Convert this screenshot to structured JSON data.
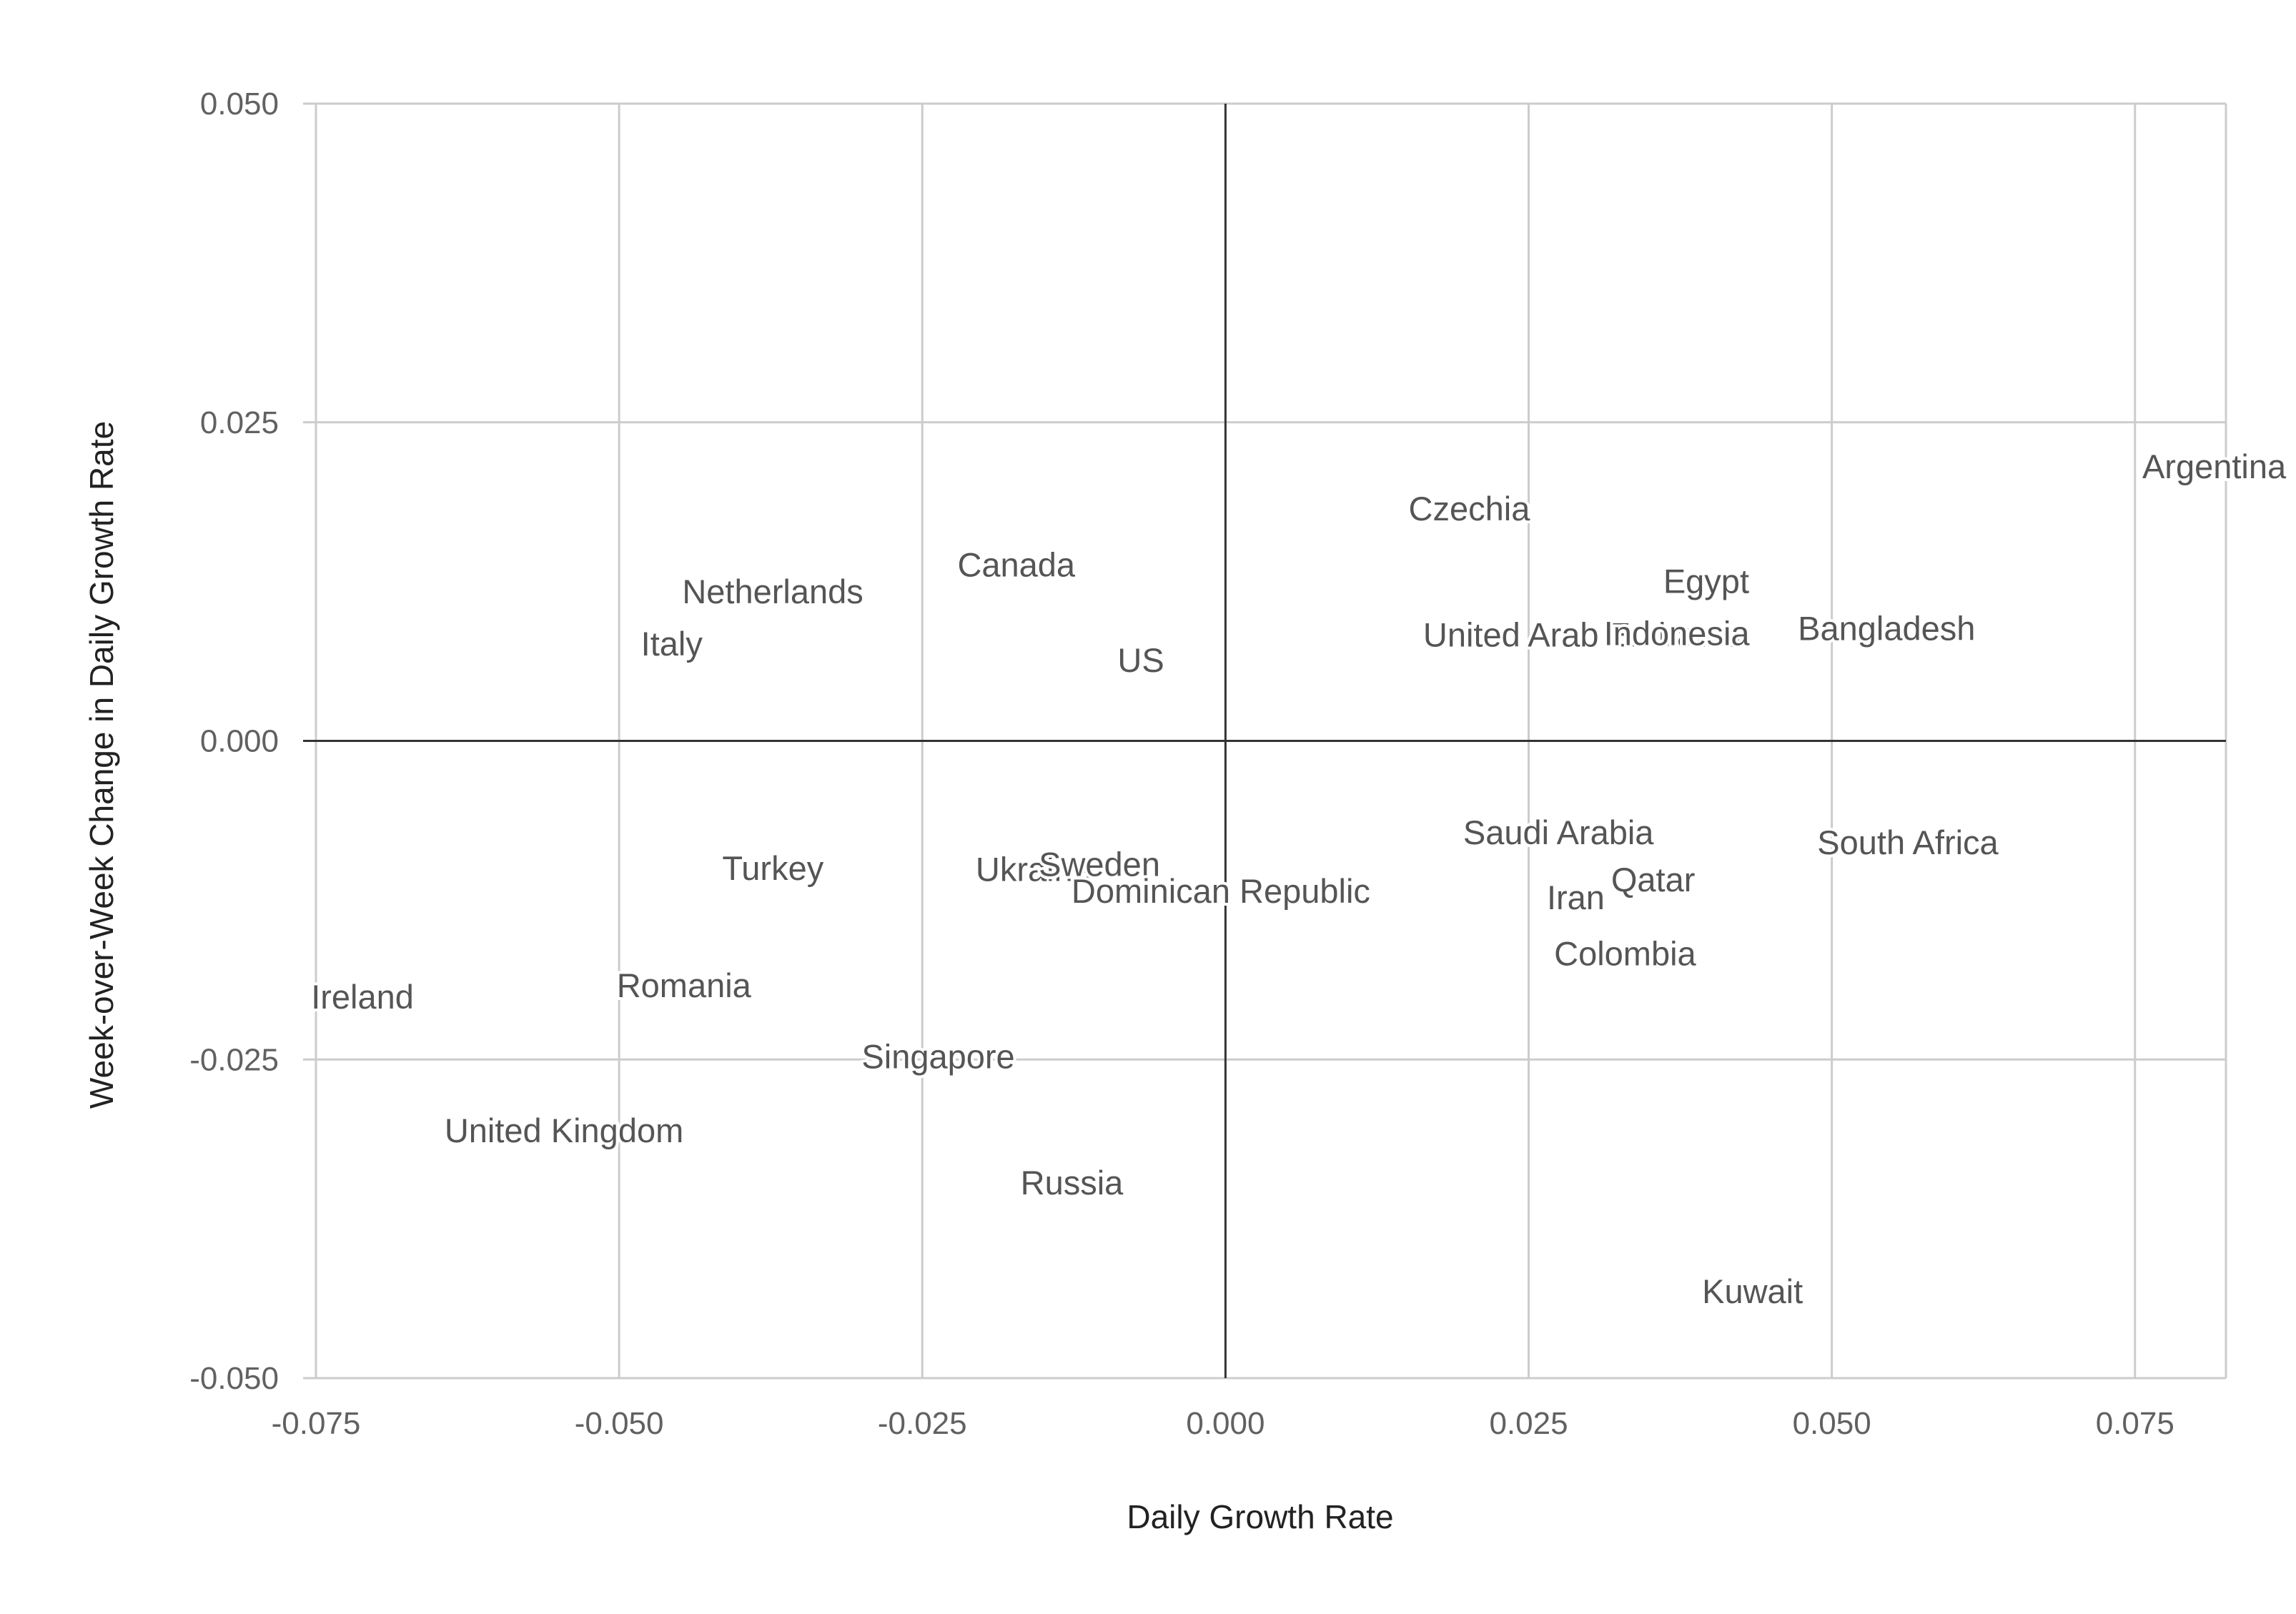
{
  "chart_data": {
    "type": "scatter",
    "xlabel": "Daily Growth Rate",
    "ylabel": "Week-over-Week Change in Daily Growth Rate",
    "xlim": [
      -0.075,
      0.0825
    ],
    "ylim": [
      -0.05,
      0.05
    ],
    "xticks": [
      -0.075,
      -0.05,
      -0.025,
      0.0,
      0.025,
      0.05,
      0.075
    ],
    "yticks": [
      -0.05,
      -0.025,
      0.0,
      0.025,
      0.05
    ],
    "xtick_labels": [
      "-0.075",
      "-0.050",
      "-0.025",
      "0.000",
      "0.025",
      "0.050",
      "0.075"
    ],
    "ytick_labels": [
      "-0.050",
      "-0.025",
      "0.000",
      "0.025",
      "0.050"
    ],
    "grid": true,
    "legend": "none",
    "points": [
      {
        "label": "Argentina",
        "x": 0.0756,
        "y": 0.0215
      },
      {
        "label": "Czechia",
        "x": 0.0151,
        "y": 0.0182
      },
      {
        "label": "Canada",
        "x": -0.0221,
        "y": 0.0138
      },
      {
        "label": "Netherlands",
        "x": -0.0448,
        "y": 0.0117
      },
      {
        "label": "Egypt",
        "x": 0.0361,
        "y": 0.0125
      },
      {
        "label": "Italy",
        "x": -0.0482,
        "y": 0.0076
      },
      {
        "label": "US",
        "x": -0.0089,
        "y": 0.0063
      },
      {
        "label": "United Arab Emirates",
        "x": 0.0163,
        "y": 0.0083
      },
      {
        "label": "Indonesia",
        "x": 0.0312,
        "y": 0.0084
      },
      {
        "label": "Bangladesh",
        "x": 0.0472,
        "y": 0.0088
      },
      {
        "label": "Saudi Arabia",
        "x": 0.0196,
        "y": -0.0072
      },
      {
        "label": "South Africa",
        "x": 0.0488,
        "y": -0.008
      },
      {
        "label": "Turkey",
        "x": -0.0415,
        "y": -0.01
      },
      {
        "label": "Ukraine",
        "x": -0.0206,
        "y": -0.0101
      },
      {
        "label": "Sweden",
        "x": -0.0154,
        "y": -0.0097
      },
      {
        "label": "Dominican Republic",
        "x": -0.0127,
        "y": -0.0118
      },
      {
        "label": "Qatar",
        "x": 0.0318,
        "y": -0.0109
      },
      {
        "label": "Iran",
        "x": 0.0265,
        "y": -0.0123
      },
      {
        "label": "Colombia",
        "x": 0.0271,
        "y": -0.0167
      },
      {
        "label": "Ireland",
        "x": -0.0754,
        "y": -0.0201
      },
      {
        "label": "Romania",
        "x": -0.0502,
        "y": -0.0192
      },
      {
        "label": "Singapore",
        "x": -0.03,
        "y": -0.0248
      },
      {
        "label": "United Kingdom",
        "x": -0.0644,
        "y": -0.0306
      },
      {
        "label": "Russia",
        "x": -0.0169,
        "y": -0.0347
      },
      {
        "label": "Kuwait",
        "x": 0.0393,
        "y": -0.0432
      }
    ]
  }
}
